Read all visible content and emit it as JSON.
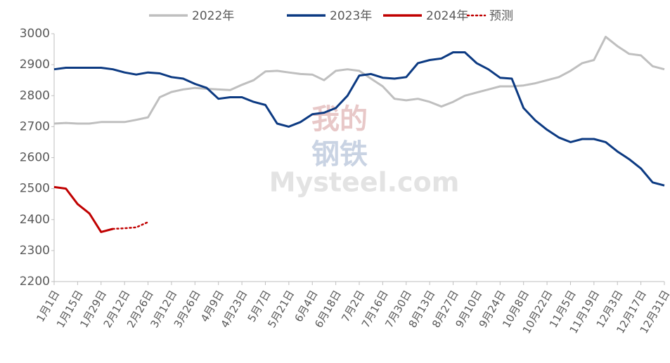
{
  "chart_data": {
    "type": "line",
    "watermark": [
      "我的",
      "钢铁",
      "Mysteel.com"
    ],
    "categories": [
      "1月1日",
      null,
      "1月15日",
      null,
      "1月29日",
      null,
      "2月12日",
      null,
      "2月26日",
      null,
      "3月12日",
      null,
      "3月26日",
      null,
      "4月9日",
      null,
      "4月23日",
      null,
      "5月7日",
      null,
      "5月21日",
      null,
      "6月4日",
      null,
      "6月18日",
      null,
      "7月2日",
      null,
      "7月16日",
      null,
      "7月30日",
      null,
      "8月13日",
      null,
      "8月27日",
      null,
      "9月10日",
      null,
      "9月24日",
      null,
      "10月8日",
      null,
      "10月22日",
      null,
      "11月5日",
      null,
      "11月19日",
      null,
      "12月3日",
      null,
      "12月17日",
      null,
      "12月31日"
    ],
    "series": [
      {
        "name": "2022年",
        "color": "#bfbfbf",
        "line_style": "solid",
        "values": [
          2710,
          2712,
          2710,
          2710,
          2715,
          2715,
          2715,
          2722,
          2730,
          2795,
          2812,
          2820,
          2825,
          2822,
          2820,
          2818,
          2835,
          2850,
          2878,
          2880,
          2875,
          2870,
          2868,
          2850,
          2880,
          2885,
          2880,
          2855,
          2830,
          2790,
          2785,
          2790,
          2780,
          2765,
          2780,
          2800,
          2810,
          2820,
          2830,
          2830,
          2833,
          2840,
          2850,
          2860,
          2880,
          2905,
          2915,
          2990,
          2960,
          2935,
          2930,
          2895,
          2885
        ]
      },
      {
        "name": "2023年",
        "color": "#0c3a82",
        "line_style": "solid",
        "values": [
          2885,
          2890,
          2890,
          2890,
          2890,
          2885,
          2875,
          2868,
          2875,
          2872,
          2860,
          2855,
          2838,
          2825,
          2790,
          2795,
          2795,
          2780,
          2770,
          2710,
          2700,
          2715,
          2740,
          2745,
          2760,
          2800,
          2865,
          2870,
          2858,
          2855,
          2860,
          2905,
          2915,
          2920,
          2940,
          2940,
          2905,
          2885,
          2858,
          2855,
          2760,
          2720,
          2690,
          2665,
          2650,
          2660,
          2660,
          2650,
          2620,
          2595,
          2565,
          2520,
          2510
        ]
      },
      {
        "name": "2024年",
        "color": "#c00000",
        "line_style": "solid",
        "values": [
          2505,
          2500,
          2450,
          2420,
          2360,
          2370,
          null,
          null,
          null,
          null,
          null,
          null,
          null,
          null,
          null,
          null,
          null,
          null,
          null,
          null,
          null,
          null,
          null,
          null,
          null,
          null,
          null,
          null,
          null,
          null,
          null,
          null,
          null,
          null,
          null,
          null,
          null,
          null,
          null,
          null,
          null,
          null,
          null,
          null,
          null,
          null,
          null,
          null,
          null,
          null,
          null,
          null,
          null
        ]
      },
      {
        "name": "预测",
        "color": "#c00000",
        "line_style": "dotted",
        "values": [
          null,
          null,
          null,
          null,
          null,
          2370,
          2372,
          2375,
          2392,
          null,
          null,
          null,
          null,
          null,
          null,
          null,
          null,
          null,
          null,
          null,
          null,
          null,
          null,
          null,
          null,
          null,
          null,
          null,
          null,
          null,
          null,
          null,
          null,
          null,
          null,
          null,
          null,
          null,
          null,
          null,
          null,
          null,
          null,
          null,
          null,
          null,
          null,
          null,
          null,
          null,
          null,
          null,
          null
        ]
      }
    ],
    "ylim": [
      2200,
      3000
    ],
    "yticks": [
      2200,
      2300,
      2400,
      2500,
      2600,
      2700,
      2800,
      2900,
      3000
    ],
    "grid": false,
    "legend": "top"
  }
}
